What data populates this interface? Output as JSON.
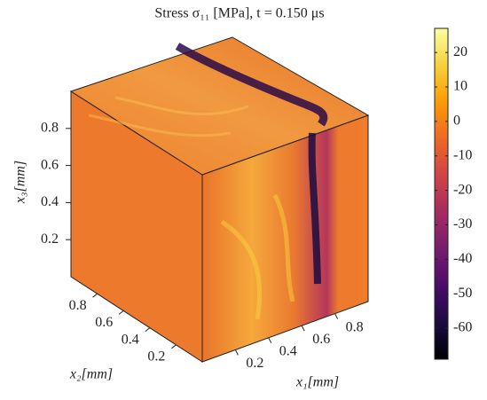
{
  "chart_data": {
    "type": "volume",
    "title": "Stress σ₁₁ [MPa],  t = 0.150 μs",
    "axes": [
      {
        "label": "x₁[mm]",
        "lim": [
          0,
          1
        ],
        "ticks": [
          0.2,
          0.4,
          0.6,
          0.8
        ]
      },
      {
        "label": "x₂[mm]",
        "lim": [
          0,
          1
        ],
        "ticks": [
          0.2,
          0.4,
          0.6,
          0.8
        ]
      },
      {
        "label": "x₃[mm]",
        "lim": [
          0,
          1
        ],
        "ticks": [
          0.2,
          0.4,
          0.6,
          0.8
        ]
      }
    ],
    "colorbar": {
      "lim": [
        -69,
        27
      ],
      "ticks": [
        20,
        10,
        0,
        -10,
        -20,
        -30,
        -40,
        -50,
        -60
      ],
      "colormap": [
        "#000004",
        "#1b0c41",
        "#4a0c6b",
        "#781c6d",
        "#a52c60",
        "#cf4446",
        "#ed6925",
        "#fb9b06",
        "#f7d13d",
        "#fcffa4"
      ]
    }
  }
}
